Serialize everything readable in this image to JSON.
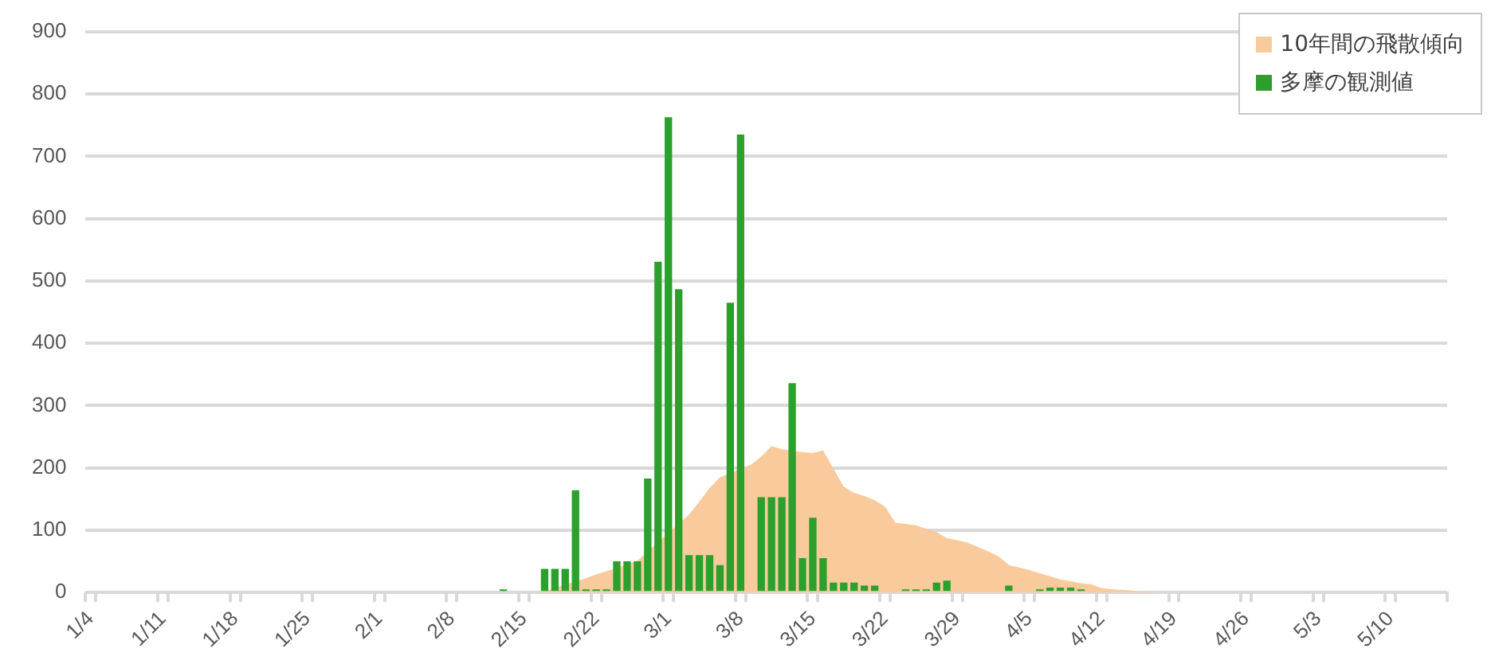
{
  "chart_data": {
    "type": "bar",
    "categories": [
      "1/4",
      null,
      null,
      null,
      null,
      null,
      null,
      "1/11",
      null,
      null,
      null,
      null,
      null,
      null,
      "1/18",
      null,
      null,
      null,
      null,
      null,
      null,
      "1/25",
      null,
      null,
      null,
      null,
      null,
      null,
      "2/1",
      null,
      null,
      null,
      null,
      null,
      null,
      "2/8",
      null,
      null,
      null,
      null,
      null,
      null,
      "2/15",
      null,
      null,
      null,
      null,
      null,
      null,
      "2/22",
      null,
      null,
      null,
      null,
      null,
      null,
      "3/1",
      null,
      null,
      null,
      null,
      null,
      null,
      "3/8",
      null,
      null,
      null,
      null,
      null,
      null,
      "3/15",
      null,
      null,
      null,
      null,
      null,
      null,
      "3/22",
      null,
      null,
      null,
      null,
      null,
      null,
      "3/29",
      null,
      null,
      null,
      null,
      null,
      null,
      "4/5",
      null,
      null,
      null,
      null,
      null,
      null,
      "4/12",
      null,
      null,
      null,
      null,
      null,
      null,
      "4/19",
      null,
      null,
      null,
      null,
      null,
      null,
      "4/26",
      null,
      null,
      null,
      null,
      null,
      null,
      "5/3",
      null,
      null,
      null,
      null,
      null,
      null,
      "5/10",
      null,
      null,
      null,
      null,
      null
    ],
    "series": [
      {
        "name": "10年間の飛散傾向",
        "type": "area",
        "color": "#f9cb9c",
        "values": [
          0,
          0,
          0,
          0,
          0,
          0,
          0,
          0,
          0,
          0,
          0,
          0,
          0,
          0,
          0,
          0,
          0,
          0,
          0,
          0,
          0,
          0,
          0,
          0,
          0,
          0,
          0,
          0,
          0,
          0,
          0,
          0,
          0,
          0,
          0,
          0,
          0,
          0,
          0,
          0,
          0,
          0,
          0,
          0,
          2,
          7,
          13,
          null,
          23,
          29,
          34,
          null,
          null,
          51,
          null,
          null,
          null,
          null,
          125,
          146,
          168,
          185,
          null,
          null,
          205,
          218,
          235,
          230,
          null,
          225,
          224,
          228,
          199,
          170,
          160,
          155,
          148,
          138,
          112,
          110,
          108,
          102,
          97,
          87,
          84,
          80,
          73,
          66,
          58,
          44,
          40,
          36,
          31,
          26,
          21,
          18,
          15,
          13,
          7,
          5,
          4,
          3,
          1,
          0,
          0,
          0,
          0,
          0,
          0,
          0,
          0,
          0,
          0,
          0,
          0,
          0,
          0,
          0,
          0,
          0,
          0,
          0,
          0,
          0,
          0,
          0,
          0,
          0,
          0,
          0,
          0,
          0
        ]
      },
      {
        "name": "多摩の観測値",
        "color": "#2ca02c",
        "values": [
          null,
          null,
          null,
          null,
          null,
          null,
          null,
          null,
          null,
          null,
          null,
          null,
          null,
          null,
          null,
          null,
          null,
          null,
          null,
          null,
          null,
          null,
          null,
          null,
          null,
          null,
          null,
          null,
          null,
          null,
          null,
          null,
          null,
          null,
          null,
          null,
          null,
          null,
          null,
          null,
          5,
          null,
          null,
          null,
          38,
          38,
          38,
          164,
          5,
          5,
          5,
          50,
          50,
          50,
          183,
          531,
          763,
          487,
          60,
          60,
          60,
          44,
          465,
          735,
          null,
          153,
          153,
          153,
          336,
          55,
          120,
          55,
          16,
          16,
          16,
          11,
          11,
          null,
          null,
          5,
          5,
          5,
          16,
          19,
          null,
          null,
          null,
          null,
          null,
          11,
          null,
          null,
          5,
          8,
          8,
          8,
          5,
          null,
          null,
          null,
          null,
          null,
          null,
          null,
          null,
          null,
          null,
          null,
          null,
          null,
          null,
          null,
          null,
          null,
          null,
          null,
          null,
          null,
          null,
          null,
          null,
          null,
          null,
          null,
          null,
          null,
          null,
          null,
          null,
          null,
          null,
          null
        ]
      }
    ],
    "ylim": [
      0,
      900
    ],
    "yticks": [
      0,
      100,
      200,
      300,
      400,
      500,
      600,
      700,
      800,
      900
    ],
    "grid": "y",
    "legend": "top right"
  }
}
